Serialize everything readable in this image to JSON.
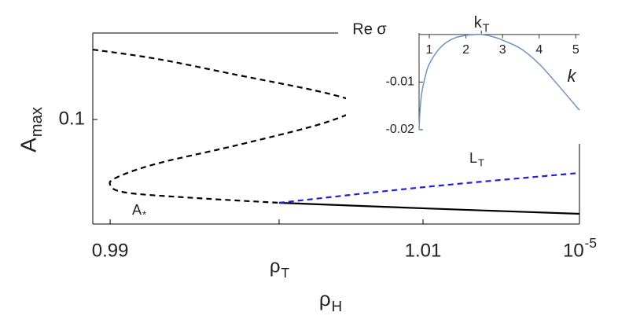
{
  "chart_data": [
    {
      "type": "line",
      "x_label": {
        "text": "ρ",
        "sub": "H"
      },
      "y_label": {
        "text": "A",
        "sub": "max"
      },
      "xlim": [
        0.98889,
        1.02
      ],
      "ylim": [
        0.078,
        0.1182
      ],
      "xticks": [
        0.99,
        {
          "value": 1.0008,
          "label": "ρ",
          "sub": "T"
        },
        1.01,
        {
          "value": 1.02,
          "label": "10",
          "sup": "-5"
        }
      ],
      "yticks": [
        0.1
      ],
      "series": [
        {
          "color": "#000000",
          "dash": true,
          "x": [
            0.98889,
            0.99302,
            0.99804,
            1.00307,
            1.00558,
            1.00598,
            1.00558,
            1.00307,
            0.99804,
            0.99302,
            0.9905,
            0.99,
            0.99101,
            0.99553,
            1.0008
          ],
          "values": [
            0.11472,
            0.11274,
            0.10943,
            0.10612,
            0.10397,
            0.10314,
            0.10165,
            0.09868,
            0.09454,
            0.09074,
            0.08793,
            0.08627,
            0.08462,
            0.08346,
            0.08247
          ]
        },
        {
          "color": "#000000",
          "dash": false,
          "x": [
            1.0008,
            1.0101,
            1.02
          ],
          "values": [
            0.08247,
            0.0813,
            0.08015
          ]
        },
        {
          "color": "#1f1fdc",
          "dash": true,
          "x": [
            1.0008,
            1.0101,
            1.02
          ],
          "values": [
            0.08247,
            0.08578,
            0.08875
          ]
        }
      ],
      "annotations": [
        {
          "text": "A",
          "sub": "*",
          "color": "#000000"
        },
        {
          "text": "L",
          "sub": "T",
          "color": "#1f1fdc"
        }
      ]
    },
    {
      "type": "line",
      "x_label": "k",
      "y_label": "Re σ",
      "xlim": [
        0.72,
        5.1
      ],
      "ylim": [
        -0.02,
        0.0003
      ],
      "xticks": [
        1,
        2,
        3,
        4,
        5
      ],
      "top_ticks": [
        {
          "value": 2.42,
          "label": "k",
          "sub": "T"
        }
      ],
      "yticks": [
        -0.01,
        -0.02
      ],
      "series": [
        {
          "color": "#6b93c4",
          "x": [
            0.72,
            0.75,
            0.8,
            0.9,
            1,
            1.25,
            1.5,
            1.75,
            2,
            2.25,
            2.42,
            2.75,
            3,
            3.5,
            4,
            4.5,
            5,
            5.1
          ],
          "values": [
            -0.02,
            -0.0155,
            -0.012,
            -0.0085,
            -0.0062,
            -0.0032,
            -0.0015,
            -0.0006,
            -0.0002,
            0,
            0,
            -0.0005,
            -0.0012,
            -0.003,
            -0.0062,
            -0.0105,
            -0.015,
            -0.0159
          ]
        }
      ]
    }
  ]
}
